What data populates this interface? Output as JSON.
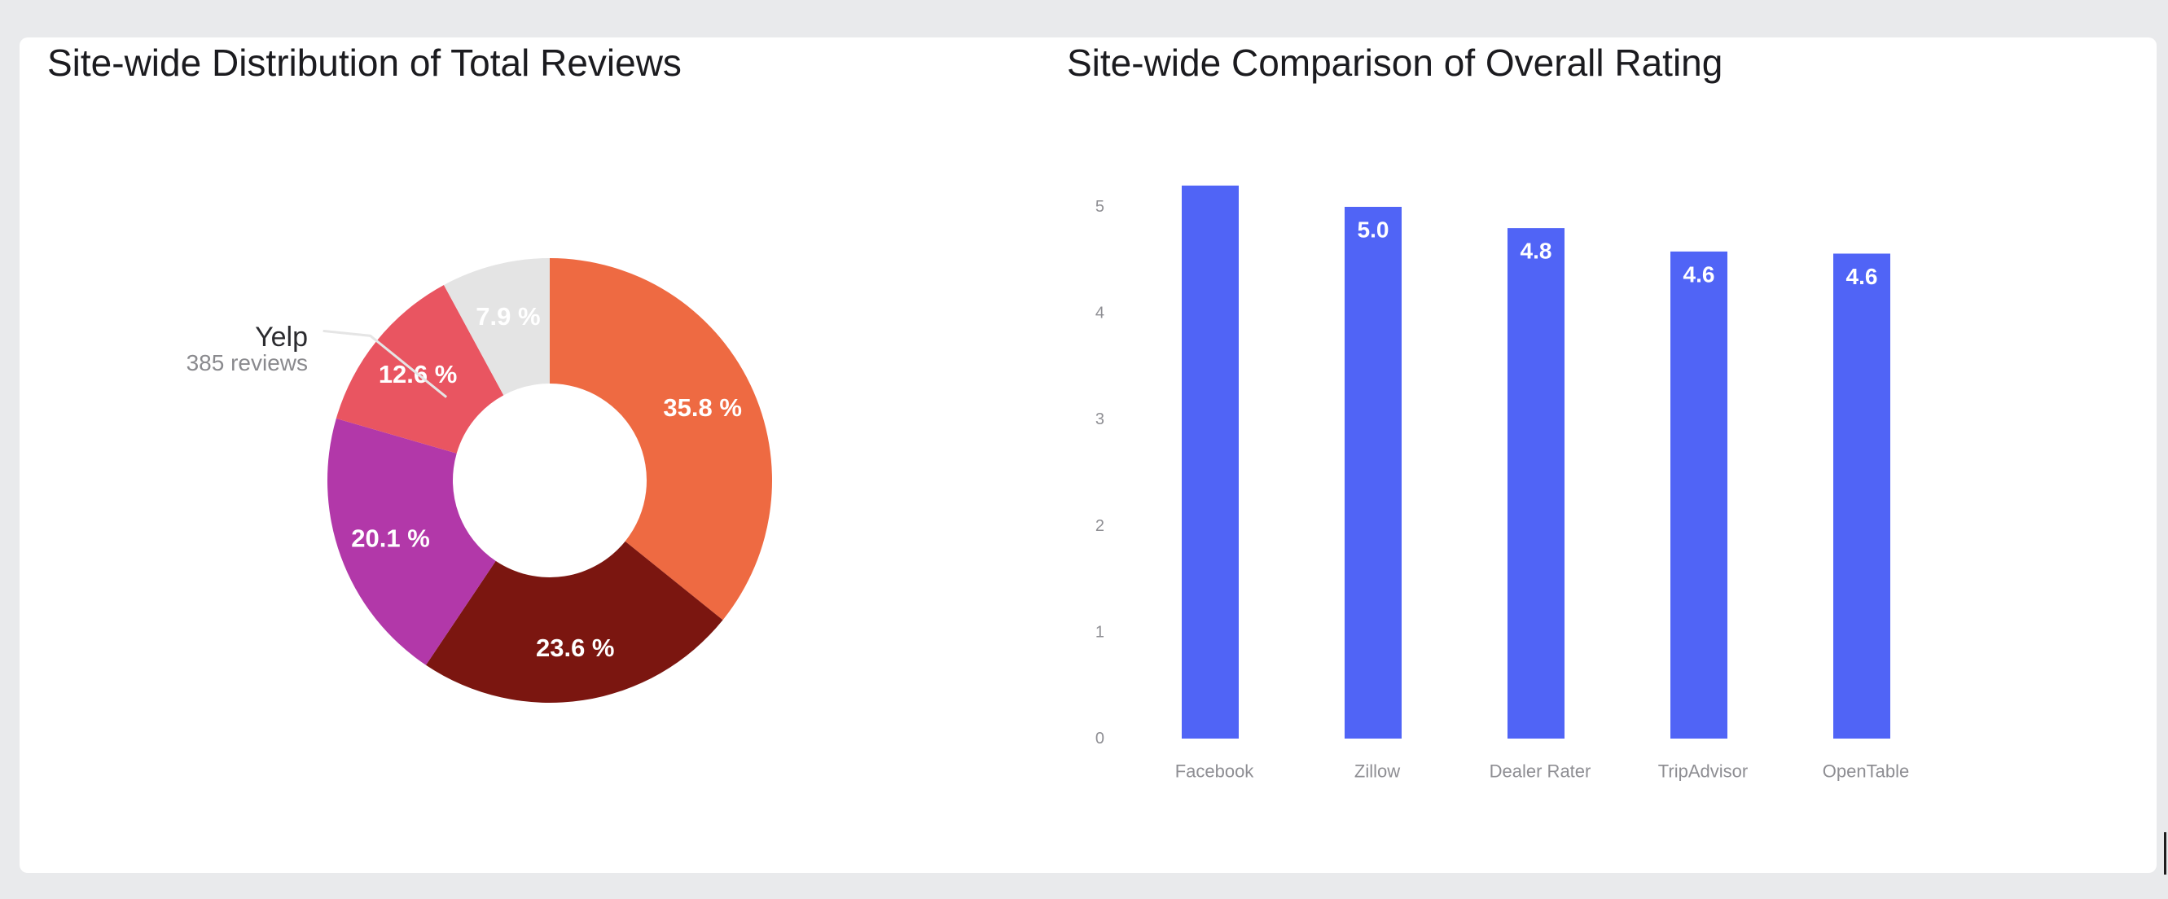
{
  "chart_data": [
    {
      "type": "pie",
      "title": "Site-wide Distribution of Total Reviews",
      "style": "donut",
      "slices": [
        {
          "percent": 35.8,
          "label": "35.8 %",
          "color": "#ee6a42"
        },
        {
          "percent": 23.6,
          "label": "23.6 %",
          "color": "#7b1610"
        },
        {
          "percent": 20.1,
          "label": "20.1 %",
          "color": "#b238a9"
        },
        {
          "percent": 12.6,
          "label": "12.6 %",
          "color": "#e95561",
          "name": "Yelp",
          "reviews": "385 reviews"
        },
        {
          "percent": 7.9,
          "label": "7.9 %",
          "color": "#e4e4e4"
        }
      ],
      "callout": {
        "slice_index": 3,
        "name": "Yelp",
        "detail": "385 reviews"
      }
    },
    {
      "type": "bar",
      "title": "Site-wide Comparison of Overall Rating",
      "categories": [
        "Facebook",
        "Zillow",
        "Dealer Rater",
        "TripAdvisor",
        "OpenTable"
      ],
      "values": [
        5.2,
        5.0,
        4.8,
        4.58,
        4.56
      ],
      "value_labels": [
        "",
        "5.0",
        "4.8",
        "4.6",
        "4.6"
      ],
      "yticks": [
        "0",
        "1",
        "2",
        "3",
        "4",
        "5"
      ],
      "ylim": [
        0,
        5
      ],
      "grid": false,
      "color": "#5064f6"
    }
  ]
}
